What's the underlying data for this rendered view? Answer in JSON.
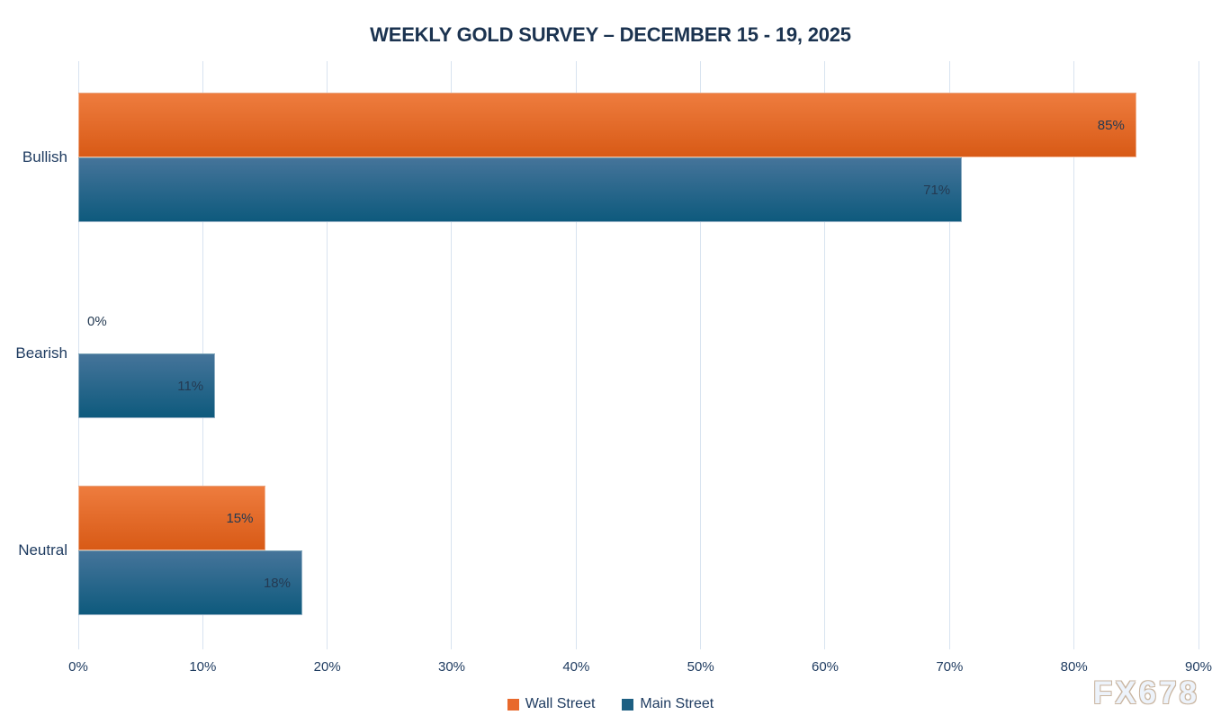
{
  "title": "WEEKLY GOLD SURVEY – DECEMBER 15 - 19, 2025",
  "watermark": "FX678",
  "colors": {
    "title_text": "#1b3350",
    "axis_text": "#1d3a5f",
    "bar_label_text": "#243a52",
    "gridline": "#d8e3f0",
    "background": "#ffffff",
    "watermark_fill": "#edf3fb",
    "watermark_outline": "#c9b5a0"
  },
  "chart_data": {
    "type": "bar",
    "orientation": "horizontal",
    "title": "WEEKLY GOLD SURVEY – DECEMBER 15 - 19, 2025",
    "categories": [
      "Bullish",
      "Bearish",
      "Neutral"
    ],
    "series": [
      {
        "name": "Wall Street",
        "values": [
          85,
          0,
          15
        ],
        "labels": [
          "85%",
          "0%",
          "15%"
        ],
        "color_top": "#ee7c3e",
        "color_bottom": "#d85a16",
        "legend_color": "#e8692c"
      },
      {
        "name": "Main Street",
        "values": [
          71,
          11,
          18
        ],
        "labels": [
          "71%",
          "11%",
          "18%"
        ],
        "color_top": "#45749a",
        "color_bottom": "#0e5a7d",
        "legend_color": "#1d5f82"
      }
    ],
    "xlim": [
      0,
      90
    ],
    "x_ticks": [
      "0%",
      "10%",
      "20%",
      "30%",
      "40%",
      "50%",
      "60%",
      "70%",
      "80%",
      "90%"
    ],
    "grid": true,
    "legend_position": "bottom"
  }
}
